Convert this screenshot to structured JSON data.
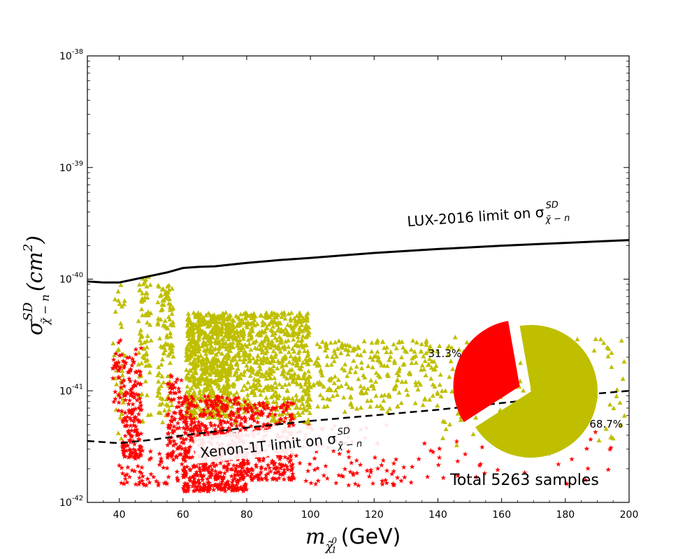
{
  "chart_data": {
    "type": "scatter",
    "xlabel_main": "m",
    "xlabel_sub": "χ̃",
    "xlabel_subsup": "0",
    "xlabel_subsub": "1",
    "xlabel_unit": "(GeV)",
    "ylabel_main": "σ",
    "ylabel_sup": "SD",
    "ylabel_sub": "χ̃ − n",
    "ylabel_unit": "(cm",
    "ylabel_unit_sup": "2",
    "ylabel_unit_close": ")",
    "xlim": [
      30,
      200
    ],
    "ylim_log10": [
      -42,
      -38
    ],
    "x_ticks": [
      {
        "value": 40,
        "label": "40"
      },
      {
        "value": 60,
        "label": "60"
      },
      {
        "value": 80,
        "label": "80"
      },
      {
        "value": 100,
        "label": "100"
      },
      {
        "value": 120,
        "label": "120"
      },
      {
        "value": 140,
        "label": "140"
      },
      {
        "value": 160,
        "label": "160"
      },
      {
        "value": 180,
        "label": "180"
      },
      {
        "value": 200,
        "label": "200"
      }
    ],
    "y_ticks": [
      {
        "value": -42,
        "base": "10",
        "exp": "-42"
      },
      {
        "value": -41,
        "base": "10",
        "exp": "-41"
      },
      {
        "value": -40,
        "base": "10",
        "exp": "-40"
      },
      {
        "value": -39,
        "base": "10",
        "exp": "-39"
      },
      {
        "value": -38,
        "base": "10",
        "exp": "-38"
      }
    ],
    "lux_curve": {
      "label": "LUX-2016 limit on σ",
      "label_sup": "SD",
      "label_sub": "χ̃ − n",
      "style": "solid",
      "color": "#000000",
      "x": [
        30,
        35,
        40,
        45,
        50,
        55,
        60,
        65,
        70,
        80,
        90,
        100,
        120,
        140,
        160,
        180,
        200
      ],
      "log10_y": [
        -40.02,
        -40.03,
        -40.03,
        -40.0,
        -39.97,
        -39.94,
        -39.9,
        -39.89,
        -39.885,
        -39.855,
        -39.83,
        -39.81,
        -39.765,
        -39.73,
        -39.7,
        -39.675,
        -39.65
      ]
    },
    "xenon_curve": {
      "label": "Xenon-1T limit on σ",
      "label_sup": "SD",
      "label_sub": "χ̃ − n",
      "style": "dashed",
      "color": "#000000",
      "x": [
        30,
        40,
        50,
        60,
        80,
        100,
        120,
        140,
        160,
        180,
        200
      ],
      "log10_y": [
        -41.45,
        -41.47,
        -41.44,
        -41.4,
        -41.33,
        -41.27,
        -41.22,
        -41.17,
        -41.11,
        -41.05,
        -41.0
      ]
    },
    "series": [
      {
        "name": "yellow triangles",
        "marker": "triangle",
        "color": "#bfbf00",
        "fraction_percent": 68.7
      },
      {
        "name": "red stars",
        "marker": "star",
        "color": "#ff0000",
        "fraction_percent": 31.3
      }
    ],
    "scatter_regions": {
      "yellow": [
        {
          "x0": 38,
          "x1": 42,
          "y0": -41.45,
          "y1": -40.05,
          "n": 40
        },
        {
          "x0": 46,
          "x1": 50,
          "y0": -41.3,
          "y1": -39.98,
          "n": 70
        },
        {
          "x0": 52,
          "x1": 57,
          "y0": -41.3,
          "y1": -40.05,
          "n": 110
        },
        {
          "x0": 61,
          "x1": 75,
          "y0": -41.25,
          "y1": -40.3,
          "n": 700
        },
        {
          "x0": 75,
          "x1": 100,
          "y0": -41.3,
          "y1": -40.3,
          "n": 650
        },
        {
          "x0": 100,
          "x1": 140,
          "y0": -41.2,
          "y1": -40.55,
          "n": 260
        },
        {
          "x0": 140,
          "x1": 199,
          "y0": -41.5,
          "y1": -40.5,
          "n": 150
        }
      ],
      "red": [
        {
          "x0": 38,
          "x1": 41,
          "y0": -41.2,
          "y1": -40.5,
          "n": 30
        },
        {
          "x0": 41,
          "x1": 44,
          "y0": -41.6,
          "y1": -40.7,
          "n": 80
        },
        {
          "x0": 44,
          "x1": 47,
          "y0": -41.6,
          "y1": -40.6,
          "n": 80
        },
        {
          "x0": 55,
          "x1": 60,
          "y0": -41.6,
          "y1": -40.85,
          "n": 90
        },
        {
          "x0": 60,
          "x1": 80,
          "y0": -41.9,
          "y1": -41.05,
          "n": 600
        },
        {
          "x0": 80,
          "x1": 95,
          "y0": -41.8,
          "y1": -41.1,
          "n": 240
        },
        {
          "x0": 95,
          "x1": 130,
          "y0": -41.85,
          "y1": -41.3,
          "n": 90
        },
        {
          "x0": 130,
          "x1": 195,
          "y0": -41.85,
          "y1": -41.35,
          "n": 45
        },
        {
          "x0": 40,
          "x1": 60,
          "y0": -41.85,
          "y1": -41.5,
          "n": 60
        }
      ]
    },
    "pie": {
      "slices": [
        {
          "label": "68.7%",
          "value": 68.7,
          "color": "#bfbf00"
        },
        {
          "label": "31.3%",
          "value": 31.3,
          "color": "#ff0000",
          "exploded": true
        }
      ],
      "caption": "Total 5263 samples"
    }
  }
}
